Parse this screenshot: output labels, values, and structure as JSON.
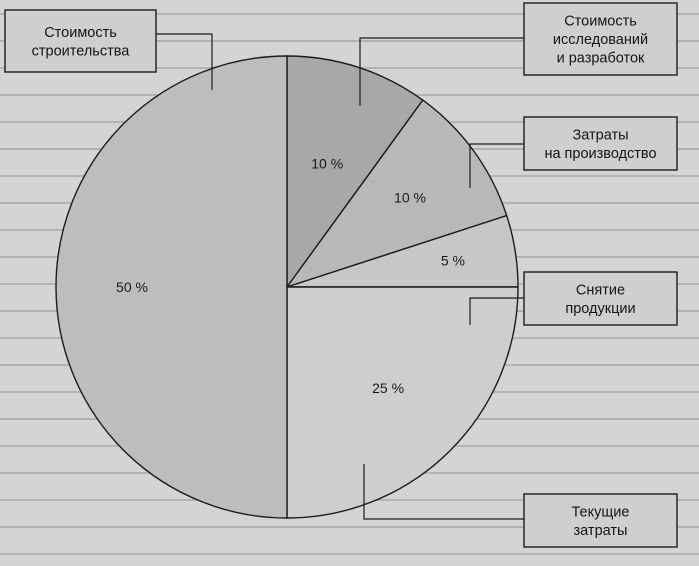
{
  "chart_data": {
    "type": "pie",
    "slices": [
      {
        "label": "Стоимость исследований и разработок",
        "lines": [
          "Стоимость",
          "исследований",
          "и разработок"
        ],
        "value": 10,
        "display": "10 %",
        "color": "#a8a8a8"
      },
      {
        "label": "Затраты на производство",
        "lines": [
          "Затраты",
          "на производство"
        ],
        "value": 10,
        "display": "10 %",
        "color": "#b8b8b8"
      },
      {
        "label": "Снятие продукции",
        "lines": [
          "Снятие",
          "продукции"
        ],
        "value": 5,
        "display": "5 %",
        "color": "#c7c7c7"
      },
      {
        "label": "Текущие затраты",
        "lines": [
          "Текущие",
          "затраты"
        ],
        "value": 25,
        "display": "25 %",
        "color": "#cecece"
      },
      {
        "label": "Стоимость строительства",
        "lines": [
          "Стоимость",
          "строительства"
        ],
        "value": 50,
        "display": "50 %",
        "color": "#bdbdbd"
      }
    ],
    "title": "",
    "legend": "callout boxes"
  }
}
